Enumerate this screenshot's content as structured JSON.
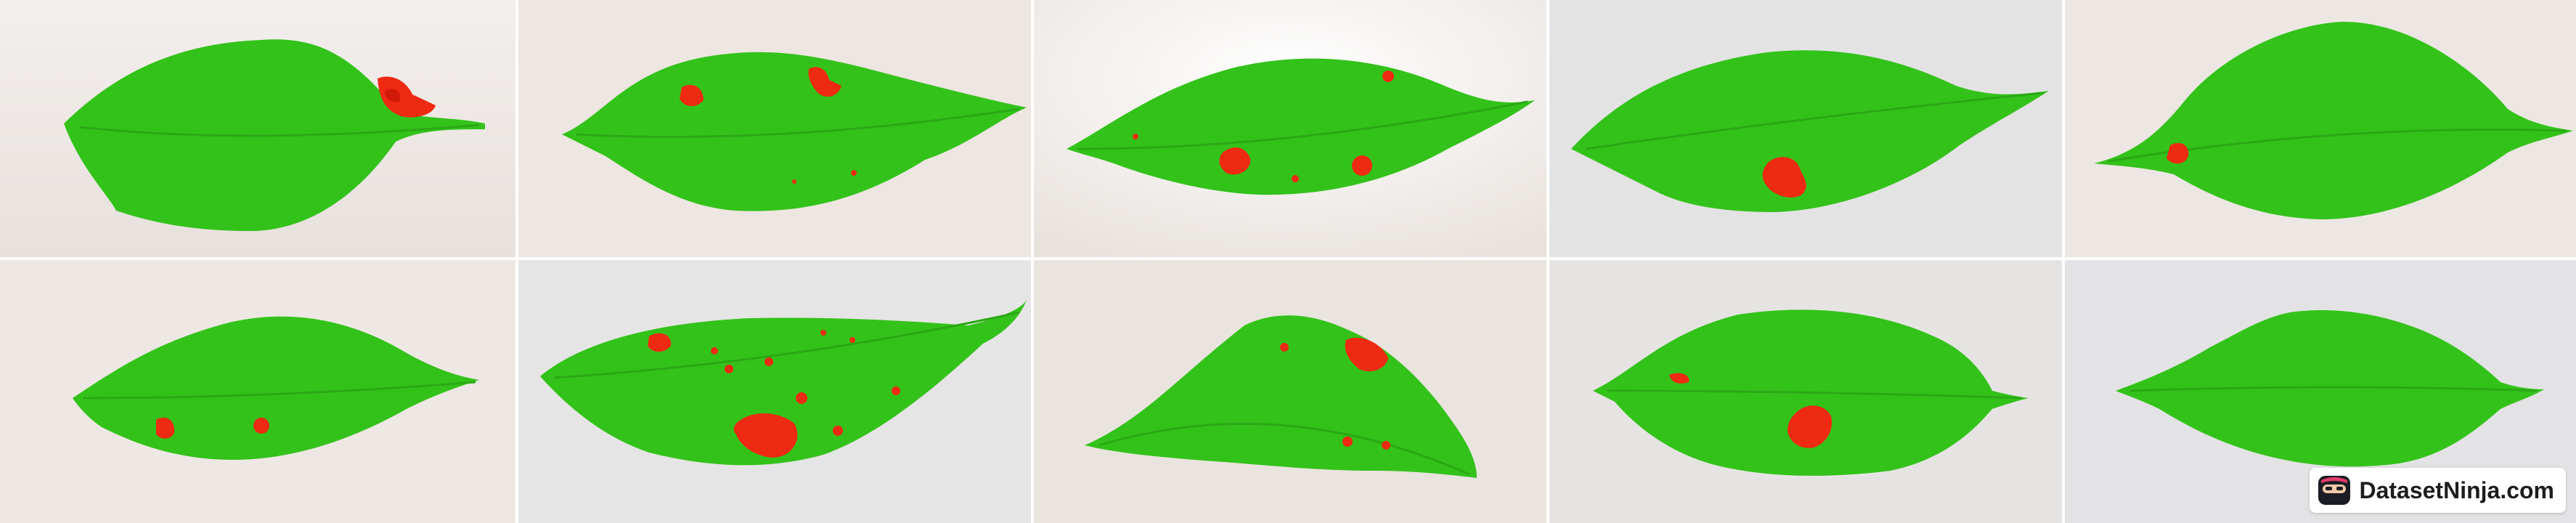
{
  "watermark": {
    "text": "DatasetNinja.com",
    "icon": "ninja-logo-icon"
  },
  "colors": {
    "leaf": "#33c21a",
    "lesion": "#ee2a12",
    "background_light": "#efeae6",
    "background_cool": "#e4e4e6"
  },
  "grid": {
    "rows": 2,
    "columns": 5,
    "image_count": 10
  },
  "images": [
    {
      "id": "img-1",
      "lesions": 2
    },
    {
      "id": "img-2",
      "lesions": 4
    },
    {
      "id": "img-3",
      "lesions": 5
    },
    {
      "id": "img-4",
      "lesions": 1
    },
    {
      "id": "img-5",
      "lesions": 1
    },
    {
      "id": "img-6",
      "lesions": 2
    },
    {
      "id": "img-7",
      "lesions": 10
    },
    {
      "id": "img-8",
      "lesions": 4
    },
    {
      "id": "img-9",
      "lesions": 2
    },
    {
      "id": "img-10",
      "lesions": 0
    }
  ]
}
